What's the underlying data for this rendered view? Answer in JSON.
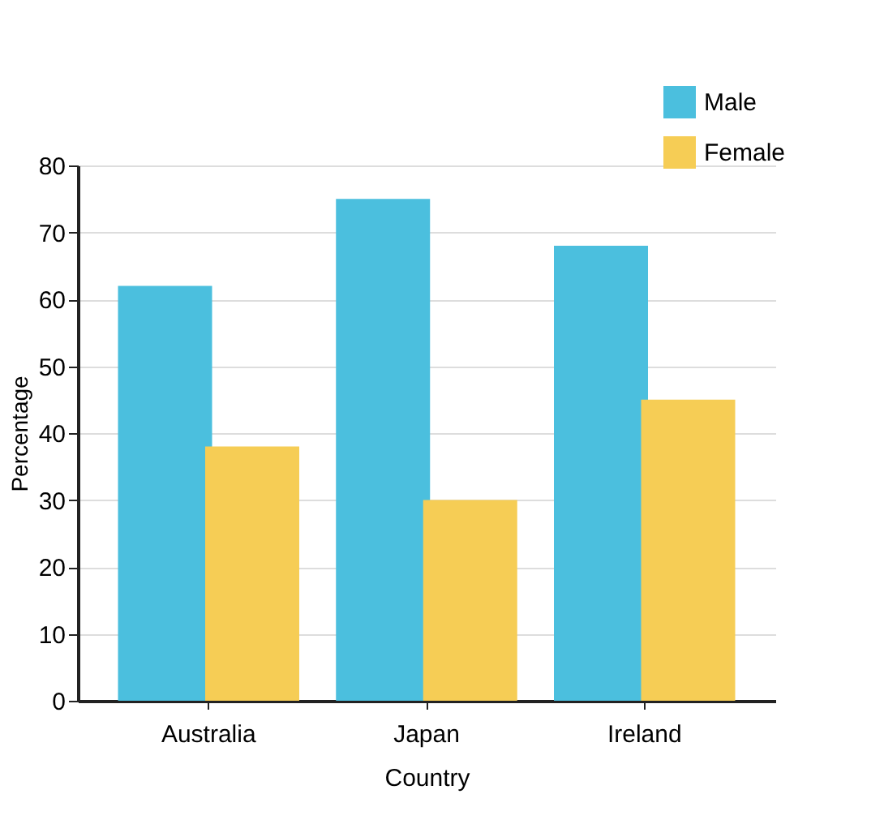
{
  "chart_data": {
    "type": "bar",
    "xlabel": "Country",
    "ylabel": "Percentage",
    "categories": [
      "Australia",
      "Japan",
      "Ireland"
    ],
    "series": [
      {
        "name": "Male",
        "color": "#4bbfde",
        "values": [
          62,
          75,
          68
        ]
      },
      {
        "name": "Female",
        "color": "#f6cd55",
        "values": [
          38,
          30,
          45
        ]
      }
    ],
    "ylim": [
      0,
      80
    ],
    "yticks": [
      0,
      10,
      20,
      30,
      40,
      50,
      60,
      70,
      80
    ],
    "grid": "y",
    "legend": "top right"
  }
}
